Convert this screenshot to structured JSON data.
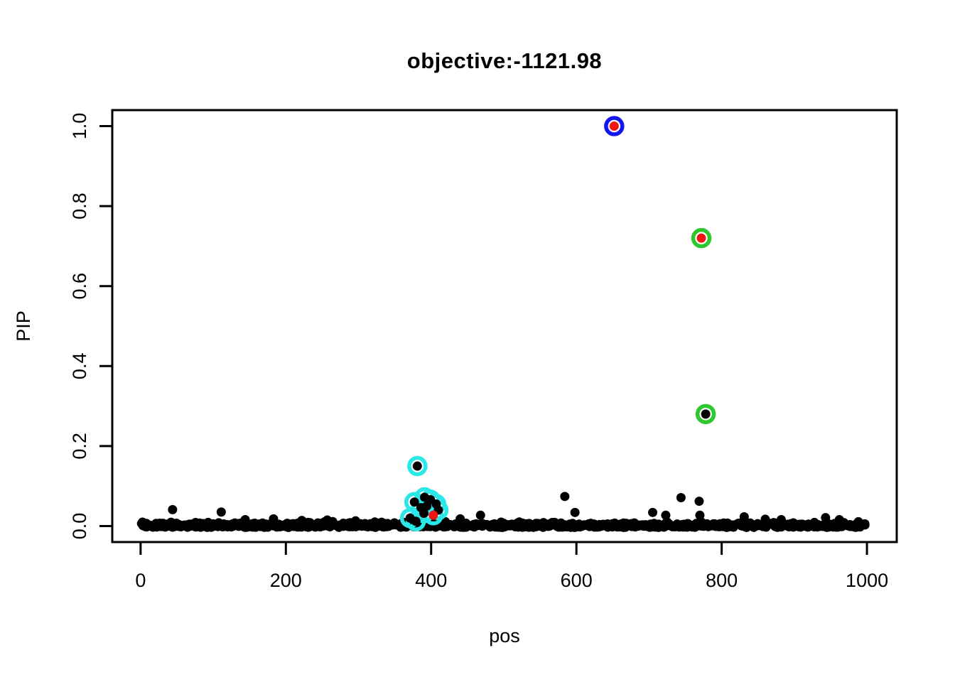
{
  "figure": {
    "title": "objective:-1121.98",
    "x_axis_label": "pos",
    "y_axis_label": "PIP"
  },
  "chart_data": {
    "type": "scatter",
    "title": "objective:-1121.98",
    "xlabel": "pos",
    "ylabel": "PIP",
    "xlim": [
      -39,
      1041
    ],
    "ylim": [
      -0.04,
      1.04
    ],
    "x_ticks": [
      0,
      200,
      400,
      600,
      800,
      1000
    ],
    "y_ticks": [
      0.0,
      0.2,
      0.4,
      0.6,
      0.8,
      1.0
    ],
    "grid": false,
    "legend": "none",
    "colors": {
      "point": "#000000",
      "red_dot": "#F01414",
      "blue_ring": "#1515EF",
      "green_ring": "#2DC82D",
      "cyan_ring": "#2BE8E8"
    },
    "highlighted_points": [
      {
        "pos": 652,
        "pip": 1.0,
        "ring": "blue",
        "dot": "red",
        "note": "top credible-set point"
      },
      {
        "pos": 772,
        "pip": 0.72,
        "ring": "green",
        "dot": "red"
      },
      {
        "pos": 778,
        "pip": 0.28,
        "ring": "green",
        "dot": "black"
      }
    ],
    "cyan_cluster_points": [
      {
        "pos": 381,
        "pip": 0.15,
        "dot": "black"
      },
      {
        "pos": 391,
        "pip": 0.072,
        "dot": "black"
      },
      {
        "pos": 377,
        "pip": 0.06,
        "dot": "black"
      },
      {
        "pos": 399,
        "pip": 0.066,
        "dot": "black"
      },
      {
        "pos": 407,
        "pip": 0.055,
        "dot": "black"
      },
      {
        "pos": 386,
        "pip": 0.046,
        "dot": "black"
      },
      {
        "pos": 394,
        "pip": 0.05,
        "dot": "black"
      },
      {
        "pos": 390,
        "pip": 0.032,
        "dot": "black"
      },
      {
        "pos": 410,
        "pip": 0.04,
        "dot": "black"
      },
      {
        "pos": 371,
        "pip": 0.02,
        "dot": "black"
      },
      {
        "pos": 403,
        "pip": 0.027,
        "dot": "red"
      },
      {
        "pos": 379,
        "pip": 0.012,
        "dot": "black"
      }
    ],
    "scatter_points": [
      {
        "pos": 44,
        "pip": 0.041
      },
      {
        "pos": 111,
        "pip": 0.035
      },
      {
        "pos": 144,
        "pip": 0.016
      },
      {
        "pos": 183,
        "pip": 0.018
      },
      {
        "pos": 222,
        "pip": 0.014
      },
      {
        "pos": 257,
        "pip": 0.015
      },
      {
        "pos": 296,
        "pip": 0.013
      },
      {
        "pos": 440,
        "pip": 0.018
      },
      {
        "pos": 468,
        "pip": 0.027
      },
      {
        "pos": 584,
        "pip": 0.074
      },
      {
        "pos": 598,
        "pip": 0.034
      },
      {
        "pos": 705,
        "pip": 0.034
      },
      {
        "pos": 723,
        "pip": 0.027
      },
      {
        "pos": 744,
        "pip": 0.071
      },
      {
        "pos": 769,
        "pip": 0.062
      },
      {
        "pos": 770,
        "pip": 0.027
      },
      {
        "pos": 831,
        "pip": 0.023
      },
      {
        "pos": 860,
        "pip": 0.017
      },
      {
        "pos": 882,
        "pip": 0.016
      },
      {
        "pos": 943,
        "pip": 0.021
      },
      {
        "pos": 962,
        "pip": 0.016
      }
    ],
    "baseline_band": {
      "description": "dense band of ~1000 markers with PIP near 0 spanning the full pos range",
      "count": 950,
      "pos_range": [
        1,
        1000
      ],
      "pip_max": 0.008,
      "seed": 20
    }
  }
}
